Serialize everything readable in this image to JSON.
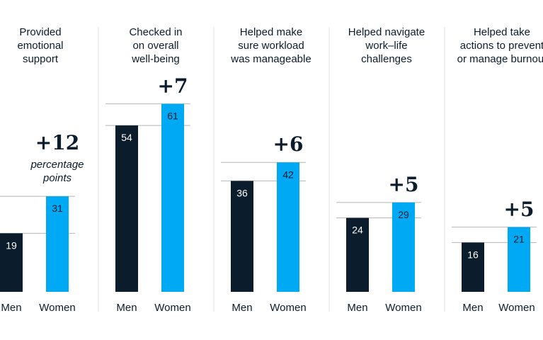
{
  "chart_data": {
    "type": "bar",
    "categories": [
      "Men",
      "Women"
    ],
    "colors": {
      "Men": "#0b1c2c",
      "Women": "#00a9f4",
      "reference": "#b5b5b5",
      "divider": "#e2e2e2"
    },
    "groups": [
      {
        "title": "Provided\nemotional\nsupport",
        "values": [
          19,
          31
        ],
        "difference": "+12",
        "difference_note": "percentage\npoints"
      },
      {
        "title": "Checked in\non overall\nwell-being",
        "values": [
          54,
          61
        ],
        "difference": "+7"
      },
      {
        "title": "Helped make\nsure workload\nwas manageable",
        "values": [
          36,
          42
        ],
        "difference": "+6"
      },
      {
        "title": "Helped navigate\nwork–life\nchallenges",
        "values": [
          24,
          29
        ],
        "difference": "+5"
      },
      {
        "title": "Helped take\nactions to prevent\nor manage burnout",
        "values": [
          16,
          21
        ],
        "difference": "+5"
      }
    ]
  }
}
